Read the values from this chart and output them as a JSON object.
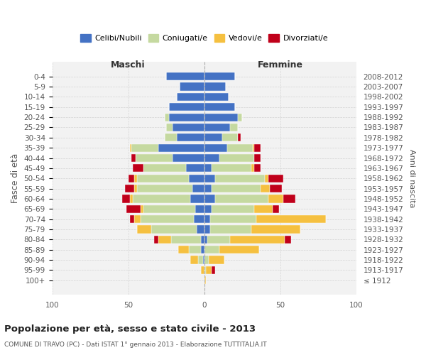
{
  "age_groups": [
    "100+",
    "95-99",
    "90-94",
    "85-89",
    "80-84",
    "75-79",
    "70-74",
    "65-69",
    "60-64",
    "55-59",
    "50-54",
    "45-49",
    "40-44",
    "35-39",
    "30-34",
    "25-29",
    "20-24",
    "15-19",
    "10-14",
    "5-9",
    "0-4"
  ],
  "birth_years": [
    "≤ 1912",
    "1913-1917",
    "1918-1922",
    "1923-1927",
    "1928-1932",
    "1933-1937",
    "1938-1942",
    "1943-1947",
    "1948-1952",
    "1953-1957",
    "1958-1962",
    "1963-1967",
    "1968-1972",
    "1973-1977",
    "1978-1982",
    "1983-1987",
    "1988-1992",
    "1993-1997",
    "1998-2002",
    "2003-2007",
    "2008-2012"
  ],
  "colors": {
    "celibi": "#4472C4",
    "coniugati": "#C5D9A0",
    "vedovi": "#F5C040",
    "divorziati": "#C0001A"
  },
  "maschi": {
    "celibi": [
      0,
      0,
      1,
      2,
      2,
      5,
      7,
      6,
      9,
      8,
      10,
      12,
      21,
      30,
      18,
      21,
      23,
      23,
      18,
      16,
      25
    ],
    "coniugati": [
      0,
      0,
      3,
      8,
      20,
      30,
      35,
      34,
      38,
      36,
      34,
      28,
      24,
      18,
      8,
      4,
      3,
      0,
      0,
      0,
      0
    ],
    "vedovi": [
      0,
      2,
      5,
      7,
      8,
      9,
      4,
      2,
      2,
      2,
      2,
      0,
      0,
      1,
      0,
      0,
      0,
      0,
      0,
      0,
      0
    ],
    "divorziati": [
      0,
      0,
      0,
      0,
      3,
      0,
      3,
      9,
      5,
      6,
      4,
      7,
      3,
      0,
      0,
      0,
      0,
      0,
      0,
      0,
      0
    ]
  },
  "femmine": {
    "celibi": [
      0,
      0,
      0,
      0,
      2,
      4,
      4,
      5,
      7,
      5,
      7,
      5,
      10,
      15,
      12,
      17,
      22,
      20,
      16,
      14,
      20
    ],
    "coniugati": [
      0,
      1,
      3,
      10,
      15,
      27,
      30,
      28,
      35,
      32,
      33,
      26,
      23,
      17,
      10,
      5,
      3,
      0,
      0,
      0,
      0
    ],
    "vedovi": [
      1,
      4,
      10,
      26,
      36,
      32,
      46,
      12,
      10,
      6,
      2,
      2,
      0,
      1,
      0,
      0,
      0,
      0,
      0,
      0,
      0
    ],
    "divorziati": [
      0,
      2,
      0,
      0,
      4,
      0,
      0,
      4,
      8,
      8,
      10,
      4,
      4,
      4,
      2,
      0,
      0,
      0,
      0,
      0,
      0
    ]
  },
  "xlim": 100,
  "title": "Popolazione per età, sesso e stato civile - 2013",
  "subtitle": "COMUNE DI TRAVO (PC) - Dati ISTAT 1° gennaio 2013 - Elaborazione TUTTITALIA.IT",
  "xlabel_maschi": "Maschi",
  "xlabel_femmine": "Femmine",
  "ylabel_left": "Fasce di età",
  "ylabel_right": "Anni di nascita",
  "legend_labels": [
    "Celibi/Nubili",
    "Coniugati/e",
    "Vedovi/e",
    "Divorziati/e"
  ],
  "bg_color": "#ffffff",
  "plot_bg": "#f2f2f2"
}
